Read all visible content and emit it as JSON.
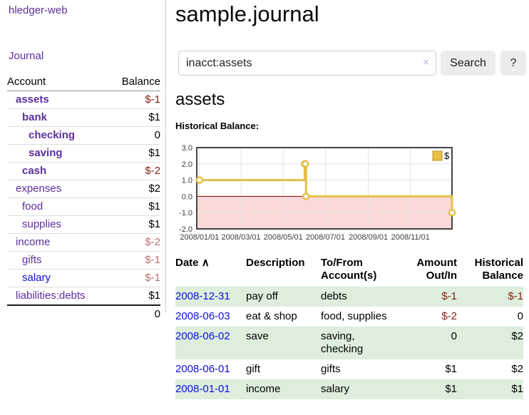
{
  "app": {
    "brand": "hledger-web",
    "nav": {
      "journal": "Journal"
    }
  },
  "colors": {
    "link_purple": "#5b2f9e",
    "link_blue": "#0d0de0",
    "negative_strong": "#8b1c14",
    "negative_soft": "#bd6f6f",
    "row_shade_green": "#ddeedd",
    "chart_line_gold": "#e6bf45"
  },
  "sidebar": {
    "headers": {
      "account": "Account",
      "balance": "Balance"
    },
    "accounts": [
      {
        "name": "assets",
        "balance": "$-1"
      },
      {
        "name": "bank",
        "balance": "$1"
      },
      {
        "name": "checking",
        "balance": "0"
      },
      {
        "name": "saving",
        "balance": "$1"
      },
      {
        "name": "cash",
        "balance": "$-2"
      },
      {
        "name": "expenses",
        "balance": "$2"
      },
      {
        "name": "food",
        "balance": "$1"
      },
      {
        "name": "supplies",
        "balance": "$1"
      },
      {
        "name": "income",
        "balance": "$-2"
      },
      {
        "name": "gifts",
        "balance": "$-1"
      },
      {
        "name": "salary",
        "balance": "$-1"
      },
      {
        "name": "liabilities:debts",
        "balance": "$1"
      }
    ],
    "total": "0"
  },
  "main": {
    "title": "sample.journal",
    "search": {
      "value": "inacct:assets",
      "clear_icon": "×",
      "button": "Search",
      "help_button": "?"
    },
    "account_heading": "assets",
    "chart_label": "Historical Balance:"
  },
  "chart_data": {
    "type": "line",
    "style": "step",
    "title": "Historical Balance",
    "x_range": [
      "2007-12-28",
      "2008-12-31"
    ],
    "y_range": [
      -2,
      3
    ],
    "x_ticks": [
      {
        "date": "2008-01-01",
        "label": "2008/01/01"
      },
      {
        "date": "2008-03-01",
        "label": "2008/03/01"
      },
      {
        "date": "2008-05-01",
        "label": "2008/05/01"
      },
      {
        "date": "2008-07-01",
        "label": "2008/07/01"
      },
      {
        "date": "2008-09-01",
        "label": "2008/09/01"
      },
      {
        "date": "2008-11-01",
        "label": "2008/11/01"
      }
    ],
    "y_ticks": [
      {
        "value": 3,
        "label": "3.0"
      },
      {
        "value": 2,
        "label": "2.0"
      },
      {
        "value": 1,
        "label": "1.0"
      },
      {
        "value": 0,
        "label": "0.0"
      },
      {
        "value": -1,
        "label": "-1.0"
      },
      {
        "value": -2,
        "label": "-2.0"
      }
    ],
    "series": [
      {
        "name": "$",
        "color": "#e6bf45",
        "points": [
          {
            "date": "2008-01-01",
            "value": 1
          },
          {
            "date": "2008-06-01",
            "value": 2
          },
          {
            "date": "2008-06-02",
            "value": 2
          },
          {
            "date": "2008-06-03",
            "value": 0
          },
          {
            "date": "2008-12-31",
            "value": -1
          }
        ]
      }
    ],
    "grid": true,
    "grid_color": "#e3e3e3",
    "border_color": "#454545",
    "zero_line_color": "#8b0000",
    "negative_fill": "#fbd9d9",
    "legend_swatch_border": "#bb9522",
    "legend_position": "top-right"
  },
  "register": {
    "headers": {
      "date": "Date",
      "description": "Description",
      "tofrom_line1": "To/From",
      "tofrom_line2": "Account(s)",
      "amount_line1": "Amount",
      "amount_line2": "Out/In",
      "historical_line1": "Historical",
      "historical_line2": "Balance"
    },
    "sort_indicator": "∧",
    "rows": [
      {
        "date": "2008-12-31",
        "description": "pay off",
        "tofrom": "debts",
        "amount": "$-1",
        "balance": "$-1"
      },
      {
        "date": "2008-06-03",
        "description": "eat & shop",
        "tofrom": "food, supplies",
        "amount": "$-2",
        "balance": "0"
      },
      {
        "date": "2008-06-02",
        "description": "save",
        "tofrom": "saving, checking",
        "amount": "0",
        "balance": "$2"
      },
      {
        "date": "2008-06-01",
        "description": "gift",
        "tofrom": "gifts",
        "amount": "$1",
        "balance": "$2"
      },
      {
        "date": "2008-01-01",
        "description": "income",
        "tofrom": "salary",
        "amount": "$1",
        "balance": "$1"
      }
    ]
  }
}
